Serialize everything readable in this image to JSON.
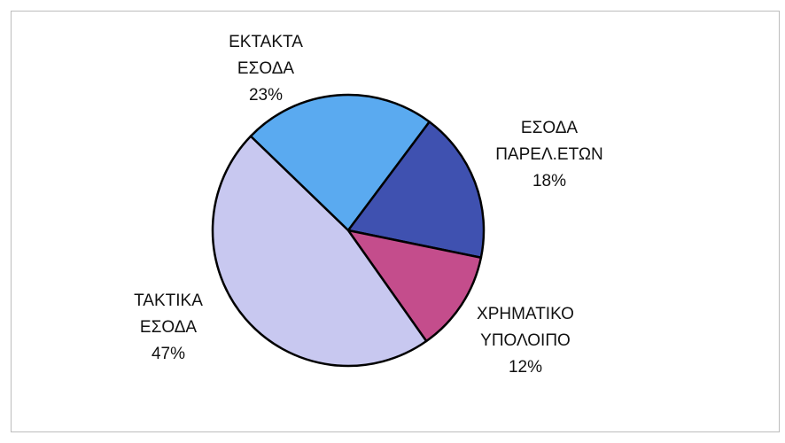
{
  "chart_data": {
    "type": "pie",
    "categories": [
      "ΕΚΤΑΚΤΑ ΕΣΟΔΑ",
      "ΕΣΟΔΑ ΠΑΡΕΛ.ΕΤΩΝ",
      "ΧΡΗΜΑΤΙΚΟ ΥΠΟΛΟΙΠΟ",
      "ΤΑΚΤΙΚΑ ΕΣΟΔΑ"
    ],
    "values": [
      23,
      18,
      12,
      47
    ],
    "value_labels": [
      "23%",
      "18%",
      "12%",
      "47%"
    ],
    "colors": [
      "#5aaaf0",
      "#3f51b0",
      "#c44d8c",
      "#c8c8f0"
    ]
  }
}
